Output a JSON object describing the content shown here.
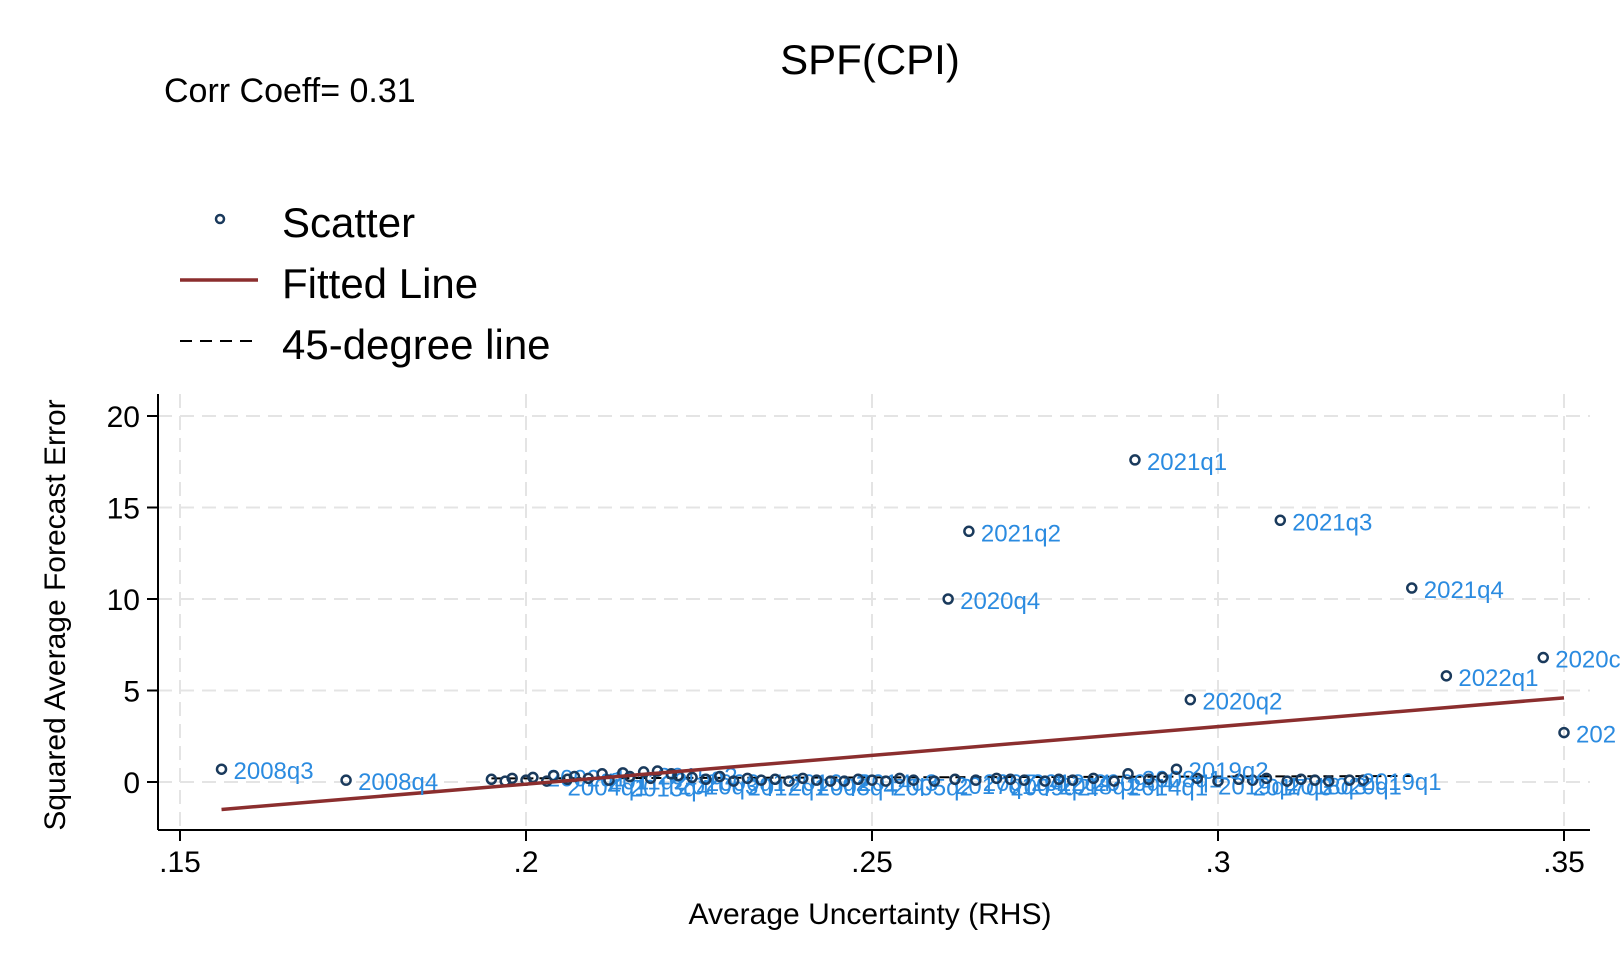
{
  "title": "SPF(CPI)",
  "corr_text": "Corr Coeff= 0.31",
  "legend": [
    {
      "label": "Scatter",
      "symbol": "hollow-circle-marker"
    },
    {
      "label": "Fitted Line",
      "symbol": "solid-line"
    },
    {
      "label": "45-degree line",
      "symbol": "dashed-line"
    }
  ],
  "colors": {
    "marker": "#1a3a5c",
    "point_label": "#2b8be0",
    "fitted_line": "#8b2e2e",
    "reference_line": "#000000",
    "grid": "#e4e4e4"
  },
  "chart_data": {
    "type": "scatter",
    "title": "SPF(CPI)",
    "xlabel": "Average Uncertainty (RHS)",
    "ylabel": "Squared Average Forecast Error",
    "xlim": [
      0.15,
      0.35
    ],
    "ylim": [
      -2.5,
      21
    ],
    "x_ticks": [
      ".15",
      ".2",
      ".25",
      ".3",
      ".35"
    ],
    "x_tick_values": [
      0.15,
      0.2,
      0.25,
      0.3,
      0.35
    ],
    "y_ticks": [
      "0",
      "5",
      "10",
      "15",
      "20"
    ],
    "y_tick_values": [
      0,
      5,
      10,
      15,
      20
    ],
    "grid": true,
    "legend_position": "top-left",
    "series": [
      {
        "name": "Scatter",
        "labeled_points": [
          {
            "label": "2008q3",
            "x": 0.156,
            "y": 0.7
          },
          {
            "label": "2008q4",
            "x": 0.174,
            "y": 0.1
          },
          {
            "label": "2020q4",
            "x": 0.261,
            "y": 10.0
          },
          {
            "label": "2021q2",
            "x": 0.264,
            "y": 13.7
          },
          {
            "label": "2021q1",
            "x": 0.288,
            "y": 17.6
          },
          {
            "label": "2021q3",
            "x": 0.309,
            "y": 14.3
          },
          {
            "label": "2021q4",
            "x": 0.328,
            "y": 10.6
          },
          {
            "label": "2020q2",
            "x": 0.296,
            "y": 4.5
          },
          {
            "label": "2022q1",
            "x": 0.333,
            "y": 5.8
          },
          {
            "label": "2020c",
            "x": 0.347,
            "y": 6.8
          },
          {
            "label": "202",
            "x": 0.35,
            "y": 2.7
          },
          {
            "label": "2019q2",
            "x": 0.294,
            "y": 0.7
          },
          {
            "label": "2019q1",
            "x": 0.319,
            "y": 0.1
          }
        ],
        "cluster_points": [
          {
            "x": 0.195,
            "y": 0.15
          },
          {
            "x": 0.197,
            "y": 0.05
          },
          {
            "x": 0.198,
            "y": 0.2
          },
          {
            "x": 0.2,
            "y": 0.1
          },
          {
            "x": 0.201,
            "y": 0.25
          },
          {
            "x": 0.203,
            "y": 0.05
          },
          {
            "x": 0.204,
            "y": 0.35
          },
          {
            "x": 0.206,
            "y": 0.15
          },
          {
            "x": 0.207,
            "y": 0.3
          },
          {
            "x": 0.209,
            "y": 0.2
          },
          {
            "x": 0.211,
            "y": 0.45
          },
          {
            "x": 0.212,
            "y": 0.1
          },
          {
            "x": 0.214,
            "y": 0.5
          },
          {
            "x": 0.215,
            "y": 0.3
          },
          {
            "x": 0.217,
            "y": 0.55
          },
          {
            "x": 0.218,
            "y": 0.2
          },
          {
            "x": 0.219,
            "y": 0.6
          },
          {
            "x": 0.221,
            "y": 0.45
          },
          {
            "x": 0.222,
            "y": 0.35
          },
          {
            "x": 0.224,
            "y": 0.25
          },
          {
            "x": 0.226,
            "y": 0.15
          },
          {
            "x": 0.228,
            "y": 0.3
          },
          {
            "x": 0.23,
            "y": 0.05
          },
          {
            "x": 0.232,
            "y": 0.2
          },
          {
            "x": 0.234,
            "y": 0.1
          },
          {
            "x": 0.236,
            "y": 0.15
          },
          {
            "x": 0.238,
            "y": 0.05
          },
          {
            "x": 0.24,
            "y": 0.2
          },
          {
            "x": 0.242,
            "y": 0.1
          },
          {
            "x": 0.244,
            "y": 0.05
          },
          {
            "x": 0.246,
            "y": 0.05
          },
          {
            "x": 0.248,
            "y": 0.15
          },
          {
            "x": 0.25,
            "y": 0.1
          },
          {
            "x": 0.252,
            "y": 0.05
          },
          {
            "x": 0.254,
            "y": 0.2
          },
          {
            "x": 0.256,
            "y": 0.1
          },
          {
            "x": 0.259,
            "y": 0.05
          },
          {
            "x": 0.262,
            "y": 0.15
          },
          {
            "x": 0.265,
            "y": 0.1
          },
          {
            "x": 0.268,
            "y": 0.2
          },
          {
            "x": 0.27,
            "y": 0.15
          },
          {
            "x": 0.272,
            "y": 0.1
          },
          {
            "x": 0.275,
            "y": 0.05
          },
          {
            "x": 0.277,
            "y": 0.15
          },
          {
            "x": 0.279,
            "y": 0.1
          },
          {
            "x": 0.282,
            "y": 0.2
          },
          {
            "x": 0.285,
            "y": 0.05
          },
          {
            "x": 0.287,
            "y": 0.45
          },
          {
            "x": 0.29,
            "y": 0.15
          },
          {
            "x": 0.292,
            "y": 0.25
          },
          {
            "x": 0.297,
            "y": 0.2
          },
          {
            "x": 0.3,
            "y": 0.05
          },
          {
            "x": 0.303,
            "y": 0.15
          },
          {
            "x": 0.305,
            "y": 0.1
          },
          {
            "x": 0.307,
            "y": 0.2
          },
          {
            "x": 0.31,
            "y": 0.05
          },
          {
            "x": 0.312,
            "y": 0.15
          },
          {
            "x": 0.314,
            "y": 0.1
          },
          {
            "x": 0.316,
            "y": 0.05
          },
          {
            "x": 0.321,
            "y": 0.1
          }
        ]
      },
      {
        "name": "Fitted Line",
        "x": [
          0.156,
          0.35
        ],
        "y": [
          -1.5,
          4.6
        ]
      },
      {
        "name": "45-degree line",
        "x": [
          0.195,
          0.328
        ],
        "y": [
          0.195,
          0.328
        ]
      }
    ],
    "garbled_cluster_labels": [
      {
        "text": "2002q1",
        "x": 0.203,
        "y": 0.3
      },
      {
        "text": "2004q1",
        "x": 0.206,
        "y": -0.2
      },
      {
        "text": "2011q2",
        "x": 0.212,
        "y": 0.15
      },
      {
        "text": "2013q4",
        "x": 0.215,
        "y": -0.25
      },
      {
        "text": "2015q2",
        "x": 0.219,
        "y": 0.4
      },
      {
        "text": "2010q3",
        "x": 0.222,
        "y": -0.15
      },
      {
        "text": "2006q1",
        "x": 0.226,
        "y": 0.05
      },
      {
        "text": "2012q1",
        "x": 0.232,
        "y": -0.2
      },
      {
        "text": "2016q2",
        "x": 0.238,
        "y": 0.05
      },
      {
        "text": "2003q4",
        "x": 0.242,
        "y": -0.2
      },
      {
        "text": "2014q3",
        "x": 0.248,
        "y": 0.05
      },
      {
        "text": "2005q2",
        "x": 0.253,
        "y": -0.2
      },
      {
        "text": "2017q1",
        "x": 0.262,
        "y": -0.1
      },
      {
        "text": "2007q4",
        "x": 0.266,
        "y": 0.05
      },
      {
        "text": "2009q2",
        "x": 0.27,
        "y": -0.2
      },
      {
        "text": "2012q4",
        "x": 0.273,
        "y": 0.05
      },
      {
        "text": "2018q1",
        "x": 0.277,
        "y": -0.15
      },
      {
        "text": "2009q4",
        "x": 0.282,
        "y": 0.05
      },
      {
        "text": "2014q1",
        "x": 0.287,
        "y": -0.2
      },
      {
        "text": "2008q1",
        "x": 0.289,
        "y": 0.25
      },
      {
        "text": "2019q4",
        "x": 0.3,
        "y": -0.15
      },
      {
        "text": "2017q3",
        "x": 0.305,
        "y": -0.2
      },
      {
        "text": "2018q3",
        "x": 0.31,
        "y": -0.15
      },
      {
        "text": "2020q1",
        "x": 0.315,
        "y": -0.15
      }
    ]
  }
}
